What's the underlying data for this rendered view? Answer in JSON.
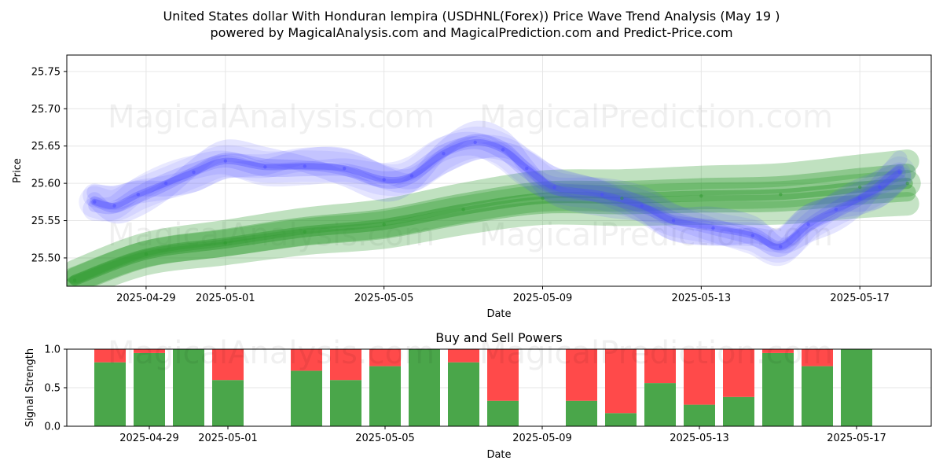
{
  "title_line1": "United States dollar With Honduran lempira (USDHNL(Forex)) Price Wave Trend Analysis (May 19 )",
  "title_line2": "powered by MagicalAnalysis.com and MagicalPrediction.com and Predict-Price.com",
  "watermarks": [
    "MagicalAnalysis.com",
    "MagicalPrediction.com"
  ],
  "colors": {
    "blue_wave": "#4a4aff",
    "green_wave": "#2e9a2e",
    "buy": "#4aa64a",
    "sell": "#ff4a4a",
    "grid": "#e6e6e6"
  },
  "chart_data": [
    {
      "type": "line",
      "xlabel": "Date",
      "ylabel": "Price",
      "xlim": [
        "2025-04-27",
        "2025-05-18.8"
      ],
      "ylim": [
        25.462,
        25.772
      ],
      "x_ticks": [
        "2025-04-29",
        "2025-05-01",
        "2025-05-05",
        "2025-05-09",
        "2025-05-13",
        "2025-05-17"
      ],
      "y_ticks": [
        "25.50",
        "25.55",
        "25.60",
        "25.65",
        "25.70",
        "25.75"
      ],
      "grid": true,
      "series": [
        {
          "style": "blue_wave",
          "points": [
            [
              "2025-04-27.7",
              25.575
            ],
            [
              "2025-04-28.2",
              25.57
            ],
            [
              "2025-04-28.8",
              25.585
            ],
            [
              "2025-04-29.5",
              25.6
            ],
            [
              "2025-04-30.2",
              25.615
            ],
            [
              "2025-05-01",
              25.63
            ],
            [
              "2025-05-02",
              25.622
            ],
            [
              "2025-05-03",
              25.623
            ],
            [
              "2025-05-04",
              25.62
            ],
            [
              "2025-05-05",
              25.605
            ],
            [
              "2025-05-05.7",
              25.61
            ],
            [
              "2025-05-06.5",
              25.64
            ],
            [
              "2025-05-07.3",
              25.655
            ],
            [
              "2025-05-08",
              25.645
            ],
            [
              "2025-05-08.6",
              25.62
            ],
            [
              "2025-05-09.3",
              25.595
            ],
            [
              "2025-05-10.5",
              25.585
            ],
            [
              "2025-05-11.5",
              25.57
            ],
            [
              "2025-05-12.3",
              25.55
            ],
            [
              "2025-05-13.3",
              25.54
            ],
            [
              "2025-05-14.3",
              25.53
            ],
            [
              "2025-05-15",
              25.515
            ],
            [
              "2025-05-15.7",
              25.545
            ],
            [
              "2025-05-16.4",
              25.565
            ],
            [
              "2025-05-17",
              25.58
            ],
            [
              "2025-05-17.5",
              25.595
            ],
            [
              "2025-05-18",
              25.615
            ]
          ]
        },
        {
          "style": "green_wave",
          "points": [
            [
              "2025-04-27.2",
              25.47
            ],
            [
              "2025-04-29",
              25.505
            ],
            [
              "2025-05-01",
              25.52
            ],
            [
              "2025-05-03",
              25.535
            ],
            [
              "2025-05-05",
              25.545
            ],
            [
              "2025-05-07",
              25.565
            ],
            [
              "2025-05-09",
              25.58
            ],
            [
              "2025-05-11",
              25.58
            ],
            [
              "2025-05-13",
              25.583
            ],
            [
              "2025-05-15",
              25.585
            ],
            [
              "2025-05-17",
              25.595
            ],
            [
              "2025-05-18.2",
              25.6
            ]
          ]
        }
      ]
    },
    {
      "type": "bar",
      "title": "Buy and Sell Powers",
      "xlabel": "Date",
      "ylabel": "Signal Strength",
      "ylim": [
        0,
        1
      ],
      "y_ticks": [
        "0.0",
        "0.5",
        "1.0"
      ],
      "x_ticks": [
        "2025-04-29",
        "2025-05-01",
        "2025-05-05",
        "2025-05-09",
        "2025-05-13",
        "2025-05-17"
      ],
      "grid": true,
      "dates": [
        "2025-04-28",
        "2025-04-29",
        "2025-04-30",
        "2025-05-01",
        "2025-05-03",
        "2025-05-04",
        "2025-05-05",
        "2025-05-06",
        "2025-05-07",
        "2025-05-08",
        "2025-05-10",
        "2025-05-11",
        "2025-05-12",
        "2025-05-13",
        "2025-05-14",
        "2025-05-15",
        "2025-05-16",
        "2025-05-17"
      ],
      "series": [
        {
          "name": "Buy",
          "values": [
            0.83,
            0.95,
            1.0,
            0.6,
            0.72,
            0.6,
            0.78,
            1.0,
            0.83,
            0.33,
            0.33,
            0.17,
            0.56,
            0.28,
            0.38,
            0.95,
            0.78,
            1.0
          ]
        },
        {
          "name": "Sell",
          "values": [
            0.17,
            0.05,
            0.0,
            0.4,
            0.28,
            0.4,
            0.22,
            0.0,
            0.17,
            0.67,
            0.67,
            0.83,
            0.44,
            0.72,
            0.62,
            0.05,
            0.22,
            0.0
          ]
        }
      ]
    }
  ]
}
